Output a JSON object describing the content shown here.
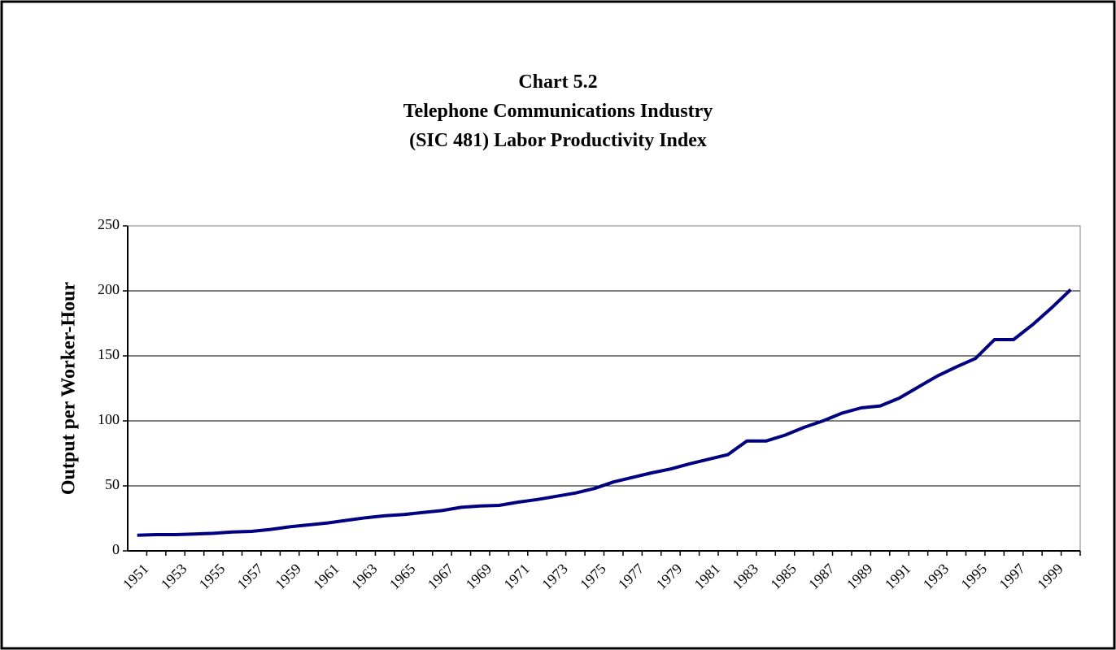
{
  "chart_data": {
    "type": "line",
    "title": [
      "Chart 5.2",
      "Telephone Communications Industry",
      "(SIC 481) Labor Productivity Index"
    ],
    "y_label": "Output per Worker-Hour",
    "categories": [
      "1951",
      null,
      "1953",
      null,
      "1955",
      null,
      "1957",
      null,
      "1959",
      null,
      "1961",
      null,
      "1963",
      null,
      "1965",
      null,
      "1967",
      null,
      "1969",
      null,
      "1971",
      null,
      "1973",
      null,
      "1975",
      null,
      "1977",
      null,
      "1979",
      null,
      "1981",
      null,
      "1983",
      null,
      "1985",
      null,
      "1987",
      null,
      "1989",
      null,
      "1991",
      null,
      "1993",
      null,
      "1995",
      null,
      "1997",
      null,
      "1999",
      null
    ],
    "series": [
      {
        "name": "Output per Worker-Hour",
        "color": "#000080",
        "values": [
          12,
          12.5,
          12.5,
          13,
          13.5,
          14.5,
          15,
          16.5,
          18.5,
          20,
          21.5,
          23.5,
          25.5,
          27,
          28,
          29.5,
          31,
          33.5,
          34.5,
          35,
          37.5,
          39.5,
          42,
          44.5,
          48,
          53,
          56.5,
          60,
          63,
          67,
          70.5,
          74,
          84.5,
          84.5,
          89,
          95,
          100,
          106,
          110,
          111.5,
          117.5,
          126,
          134.5,
          141.5,
          148,
          162.5,
          162.5,
          174,
          187,
          201
        ]
      }
    ],
    "ylim": [
      0,
      250
    ],
    "yticks": [
      0,
      50,
      100,
      150,
      200,
      250
    ],
    "grid": true
  }
}
